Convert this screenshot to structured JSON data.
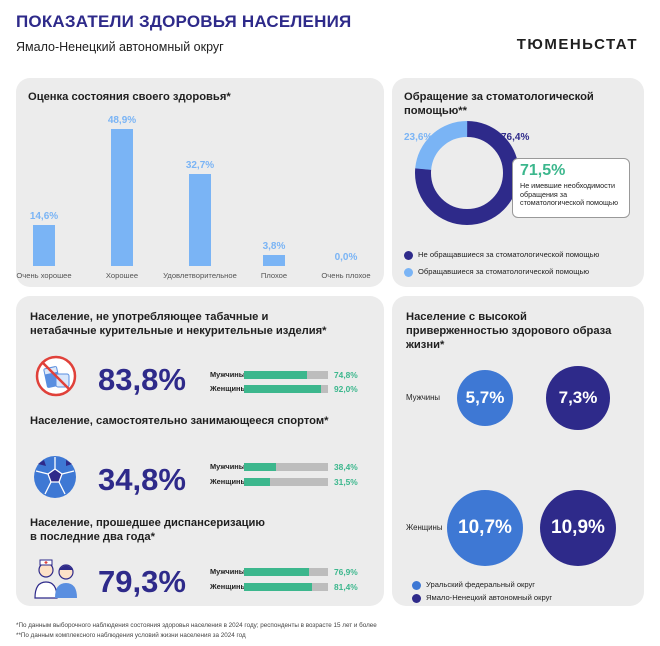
{
  "header": {
    "title": "ПОКАЗАТЕЛИ ЗДОРОВЬЯ НАСЕЛЕНИЯ",
    "subtitle": "Ямало-Ненецкий автономный округ",
    "brand": "ТЮМЕНЬСТАТ"
  },
  "colors": {
    "dark_blue": "#2e2a8a",
    "light_blue": "#7ab4f5",
    "mid_blue": "#3e78d4",
    "green": "#3cb78d",
    "gray": "#bdbdbd"
  },
  "chart_data": [
    {
      "type": "bar",
      "title": "Оценка состояния своего здоровья*",
      "categories": [
        "Очень хорошее",
        "Хорошее",
        "Удовлетворительное",
        "Плохое",
        "Очень плохое"
      ],
      "values": [
        14.6,
        48.9,
        32.7,
        3.8,
        0.0
      ],
      "labels": [
        "14,6%",
        "48,9%",
        "32,7%",
        "3,8%",
        "0,0%"
      ]
    },
    {
      "type": "pie",
      "title": "Обращение за стоматологической помощью**",
      "series": [
        {
          "name": "Не обращавшиеся за стоматологической помощью",
          "value": 76.4,
          "label": "76,4%",
          "color": "#2e2a8a"
        },
        {
          "name": "Обращавшиеся за стоматологической помощью",
          "value": 23.6,
          "label": "23,6%",
          "color": "#7ab4f5"
        }
      ],
      "annotation": {
        "value": "71,5%",
        "text": "Не имевшие необходимости обращения за стоматологической помощью"
      }
    },
    {
      "type": "bar",
      "title": "Население, не употребляющее табачные и нетабачные курительные и некурительные изделия*",
      "total_label": "83,8%",
      "categories": [
        "Мужчины",
        "Женщины"
      ],
      "values": [
        74.8,
        92.0
      ],
      "labels": [
        "74,8%",
        "92,0%"
      ],
      "icon": "no-smoking-icon"
    },
    {
      "type": "bar",
      "title": "Население, самостоятельно занимающееся спортом*",
      "total_label": "34,8%",
      "categories": [
        "Мужчины",
        "Женщины"
      ],
      "values": [
        38.4,
        31.5
      ],
      "labels": [
        "38,4%",
        "31,5%"
      ],
      "icon": "soccer-ball-icon"
    },
    {
      "type": "bar",
      "title": "Население, прошедшее диспансеризацию в последние два года*",
      "total_label": "79,3%",
      "categories": [
        "Мужчины",
        "Женщины"
      ],
      "values": [
        76.9,
        81.4
      ],
      "labels": [
        "76,9%",
        "81,4%"
      ],
      "icon": "doctor-patient-icon"
    },
    {
      "type": "scatter",
      "title": "Население с высокой приверженностью здорового образа жизни*",
      "categories": [
        "Мужчины",
        "Женщины"
      ],
      "series": [
        {
          "name": "Уральский федеральный округ",
          "values": [
            5.7,
            10.7
          ],
          "labels": [
            "5,7%",
            "10,7%"
          ],
          "color": "#3e78d4"
        },
        {
          "name": "Ямало-Ненецкий автономный округ",
          "values": [
            7.3,
            10.9
          ],
          "labels": [
            "7,3%",
            "10,9%"
          ],
          "color": "#2e2a8a"
        }
      ]
    }
  ],
  "footnotes": [
    "*По данным выборочного наблюдения состояния здоровья населения в 2024 году; респонденты в возрасте 15 лет и более",
    "**По данным комплексного наблюдения условий жизни населения за 2024 год"
  ]
}
